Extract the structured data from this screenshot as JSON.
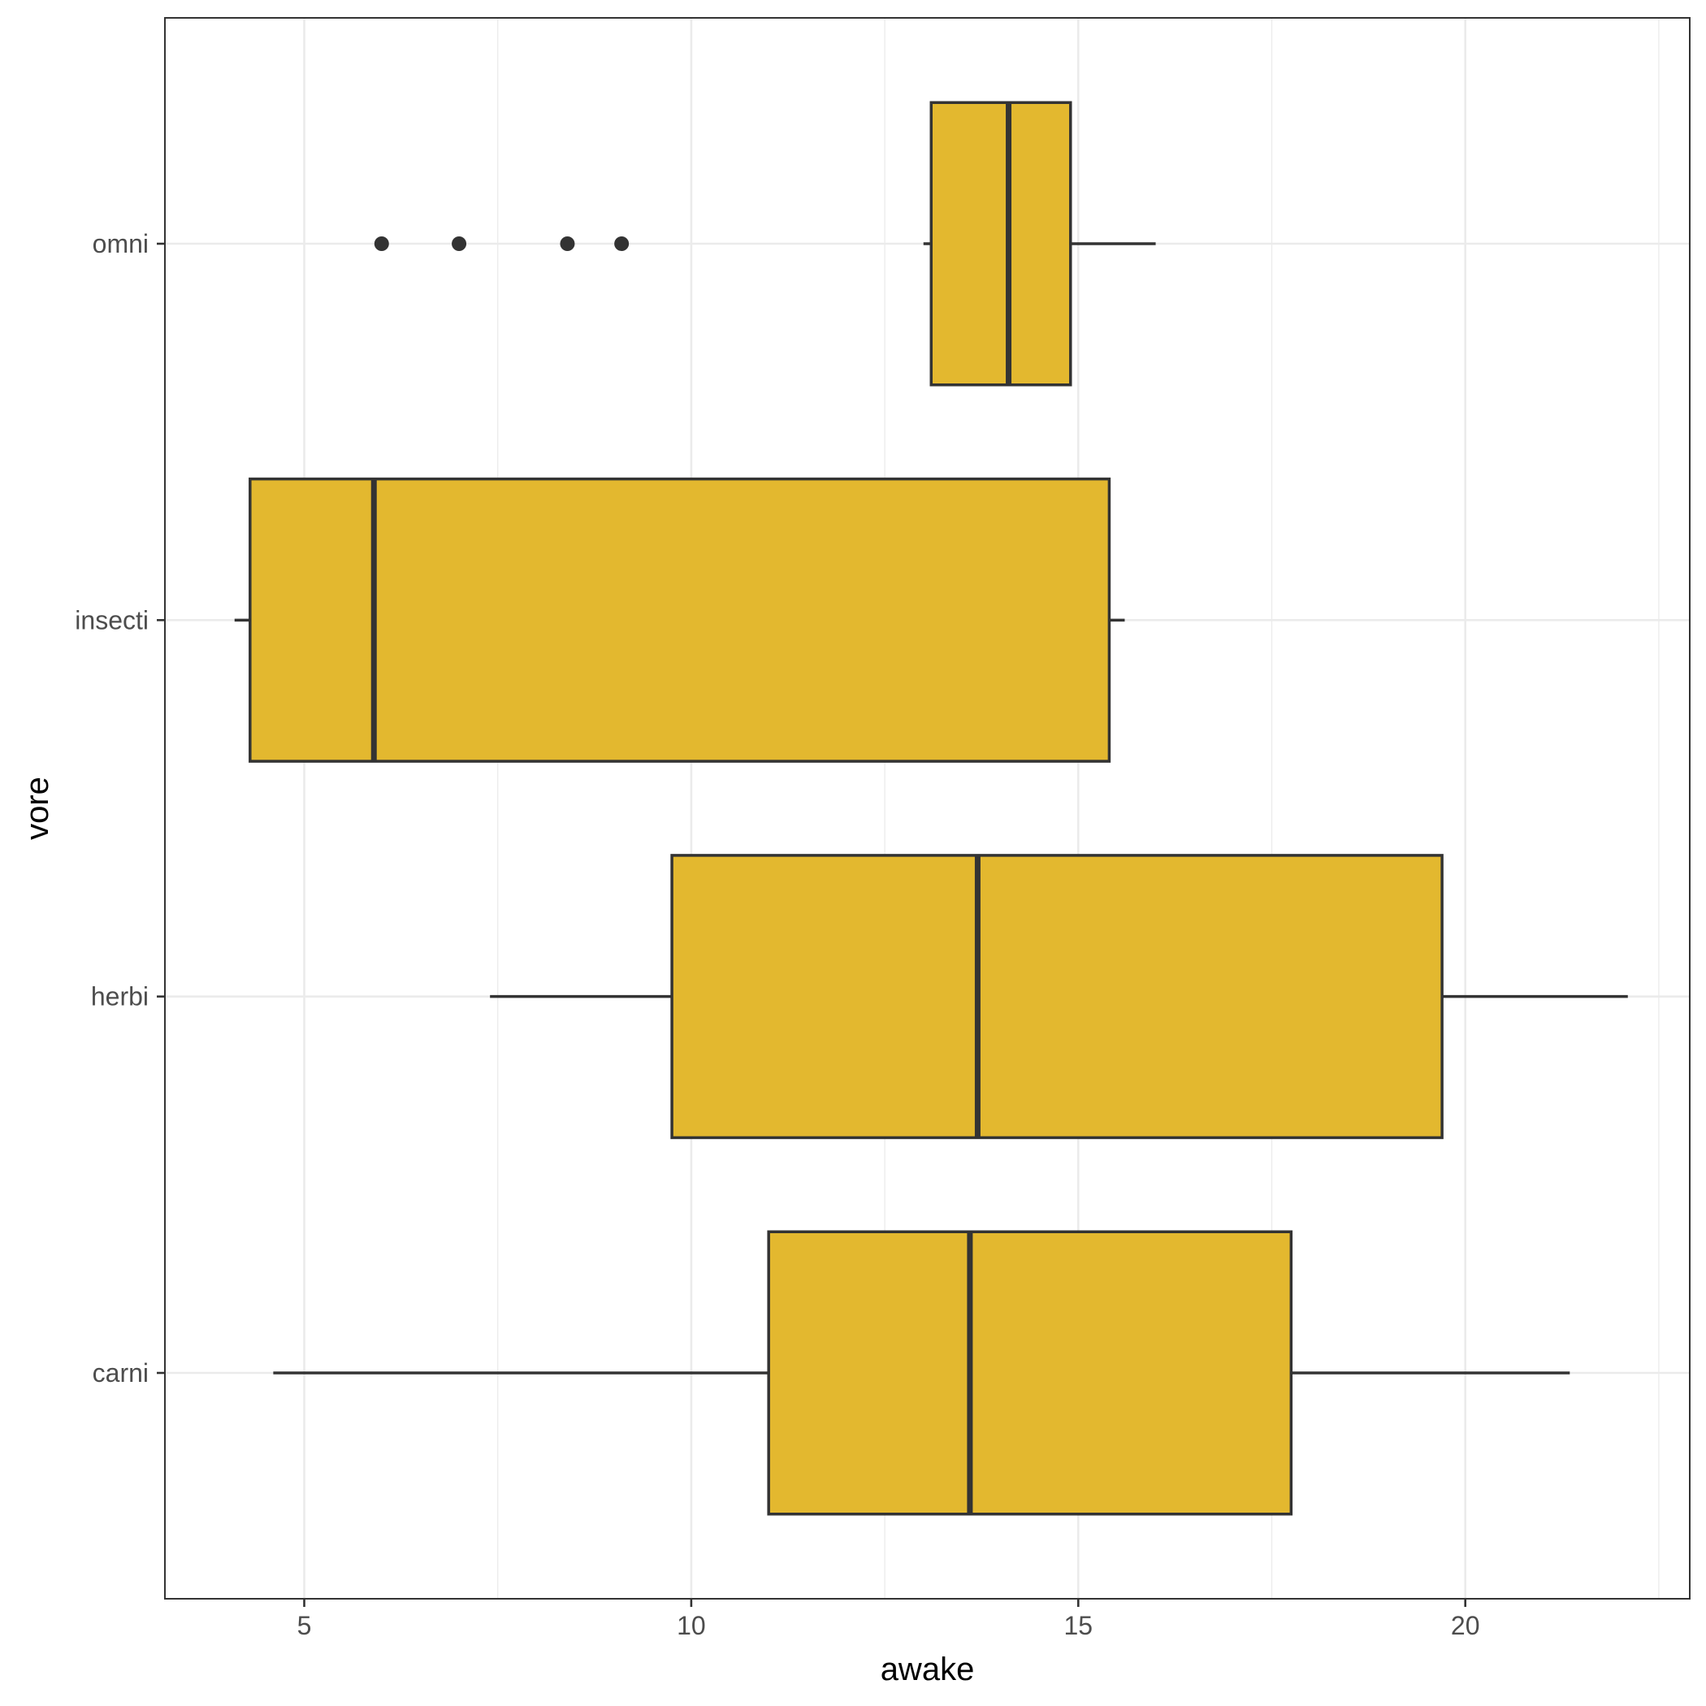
{
  "chart_data": {
    "type": "boxplot",
    "orientation": "horizontal",
    "xlabel": "awake",
    "ylabel": "vore",
    "xlim": [
      3.2,
      22.9
    ],
    "x_ticks": [
      5,
      10,
      15,
      20
    ],
    "x_minor_ticks": [
      7.5,
      12.5,
      17.5,
      22.5
    ],
    "categories": [
      "carni",
      "herbi",
      "insecti",
      "omni"
    ],
    "box_fill": "#E3B82F",
    "line_color": "#333333",
    "grid": true,
    "legend": "none",
    "boxes": [
      {
        "category": "carni",
        "whisker_low": 4.6,
        "q1": 11.0,
        "median": 13.6,
        "q3": 17.75,
        "whisker_high": 21.35,
        "outliers": []
      },
      {
        "category": "herbi",
        "whisker_low": 7.4,
        "q1": 9.75,
        "median": 13.7,
        "q3": 19.7,
        "whisker_high": 22.1,
        "outliers": []
      },
      {
        "category": "insecti",
        "whisker_low": 4.1,
        "q1": 4.3,
        "median": 5.9,
        "q3": 15.4,
        "whisker_high": 15.6,
        "outliers": []
      },
      {
        "category": "omni",
        "whisker_low": 13.0,
        "q1": 13.1,
        "median": 14.1,
        "q3": 14.9,
        "whisker_high": 16.0,
        "outliers": [
          6.0,
          7.0,
          8.4,
          9.1
        ]
      }
    ]
  }
}
